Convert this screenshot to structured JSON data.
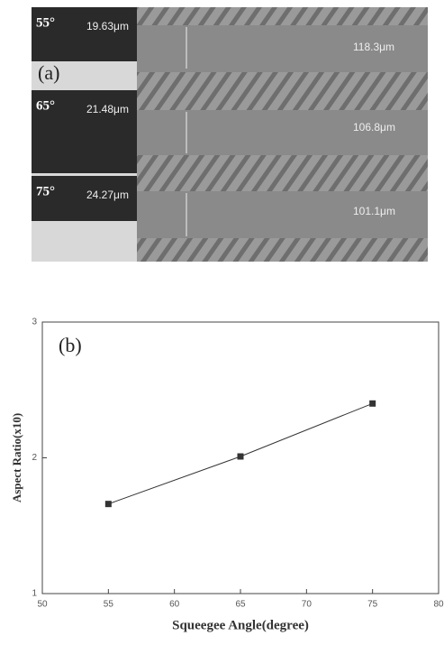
{
  "panel_a": {
    "label": "(a)",
    "rows": [
      {
        "angle": "55°",
        "height": "19.63μm",
        "width": "118.3μm"
      },
      {
        "angle": "65°",
        "height": "21.48μm",
        "width": "106.8μm"
      },
      {
        "angle": "75°",
        "height": "24.27μm",
        "width": "101.1μm"
      }
    ]
  },
  "chart_data": {
    "type": "line",
    "panel_label": "(b)",
    "x_label": "Squeegee Angle(degree)",
    "y_label": "Aspect Ratio(x10)",
    "x": [
      55,
      65,
      75
    ],
    "values": [
      1.66,
      2.01,
      2.4
    ],
    "color": "#333333",
    "marker": "square",
    "xlim": [
      50,
      80
    ],
    "xticks": [
      50,
      55,
      60,
      65,
      70,
      75,
      80
    ],
    "ylim": [
      1,
      3
    ],
    "yticks": [
      1,
      2,
      3
    ],
    "grid": false
  }
}
